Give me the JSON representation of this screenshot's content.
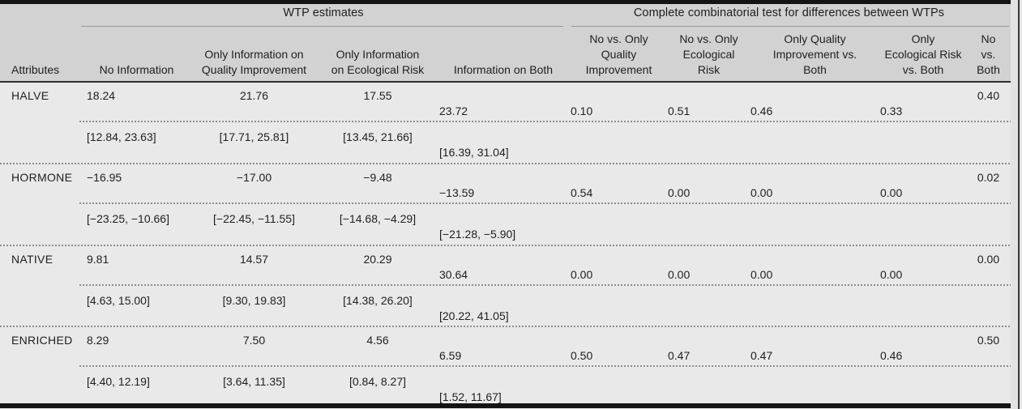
{
  "table": {
    "header": {
      "band_wtp": "WTP estimates",
      "band_tests": "Complete combinatorial test for differences between WTPs",
      "columns": [
        {
          "label": "Attributes"
        },
        {
          "label": "No Information"
        },
        {
          "label": "Only Information on\nQuality Improvement"
        },
        {
          "label": "Only Information\non Ecological Risk"
        },
        {
          "label": "Information on Both"
        },
        {
          "label": "No vs. Only\nQuality\nImprovement"
        },
        {
          "label": "No vs. Only\nEcological\nRisk"
        },
        {
          "label": "Only Quality\nImprovement vs.\nBoth"
        },
        {
          "label": "Only\nEcological Risk\nvs. Both"
        },
        {
          "label": "No\nvs.\nBoth"
        }
      ]
    },
    "rows": [
      {
        "attribute": "HALVE",
        "wtp": {
          "no_information": {
            "estimate": "18.24",
            "ci": "[12.84, 23.63]"
          },
          "only_quality": {
            "estimate": "21.76",
            "ci": "[17.71, 25.81]"
          },
          "only_ecological": {
            "estimate": "17.55",
            "ci": "[13.45, 21.66]"
          },
          "both": {
            "estimate": "23.72",
            "ci": "[16.39, 31.04]"
          }
        },
        "tests": {
          "no_vs_quality": "0.10",
          "no_vs_ecological": "0.51",
          "quality_vs_both": "0.46",
          "ecological_vs_both": "0.33",
          "no_vs_both": "0.40"
        }
      },
      {
        "attribute": "HORMONE",
        "wtp": {
          "no_information": {
            "estimate": "−16.95",
            "ci": "[−23.25, −10.66]"
          },
          "only_quality": {
            "estimate": "−17.00",
            "ci": "[−22.45, −11.55]"
          },
          "only_ecological": {
            "estimate": "−9.48",
            "ci": "[−14.68, −4.29]"
          },
          "both": {
            "estimate": "−13.59",
            "ci": "[−21.28, −5.90]"
          }
        },
        "tests": {
          "no_vs_quality": "0.54",
          "no_vs_ecological": "0.00",
          "quality_vs_both": "0.00",
          "ecological_vs_both": "0.00",
          "no_vs_both": "0.02"
        }
      },
      {
        "attribute": "NATIVE",
        "wtp": {
          "no_information": {
            "estimate": "9.81",
            "ci": "[4.63, 15.00]"
          },
          "only_quality": {
            "estimate": "14.57",
            "ci": "[9.30, 19.83]"
          },
          "only_ecological": {
            "estimate": "20.29",
            "ci": "[14.38, 26.20]"
          },
          "both": {
            "estimate": "30.64",
            "ci": "[20.22, 41.05]"
          }
        },
        "tests": {
          "no_vs_quality": "0.00",
          "no_vs_ecological": "0.00",
          "quality_vs_both": "0.00",
          "ecological_vs_both": "0.00",
          "no_vs_both": "0.00"
        }
      },
      {
        "attribute": "ENRICHED",
        "wtp": {
          "no_information": {
            "estimate": "8.29",
            "ci": "[4.40, 12.19]"
          },
          "only_quality": {
            "estimate": "7.50",
            "ci": "[3.64, 11.35]"
          },
          "only_ecological": {
            "estimate": "4.56",
            "ci": "[0.84, 8.27]"
          },
          "both": {
            "estimate": "6.59",
            "ci": "[1.52, 11.67]"
          }
        },
        "tests": {
          "no_vs_quality": "0.50",
          "no_vs_ecological": "0.47",
          "quality_vs_both": "0.47",
          "ecological_vs_both": "0.46",
          "no_vs_both": "0.50"
        }
      }
    ]
  },
  "colors": {
    "header_bg": "#d2d2d2",
    "body_bg": "#e9e9e9",
    "frame": "#141414",
    "band_rule": "#9a9a9a",
    "dotted_rule": "#6e6e6e",
    "text": "#1e1e1e"
  }
}
